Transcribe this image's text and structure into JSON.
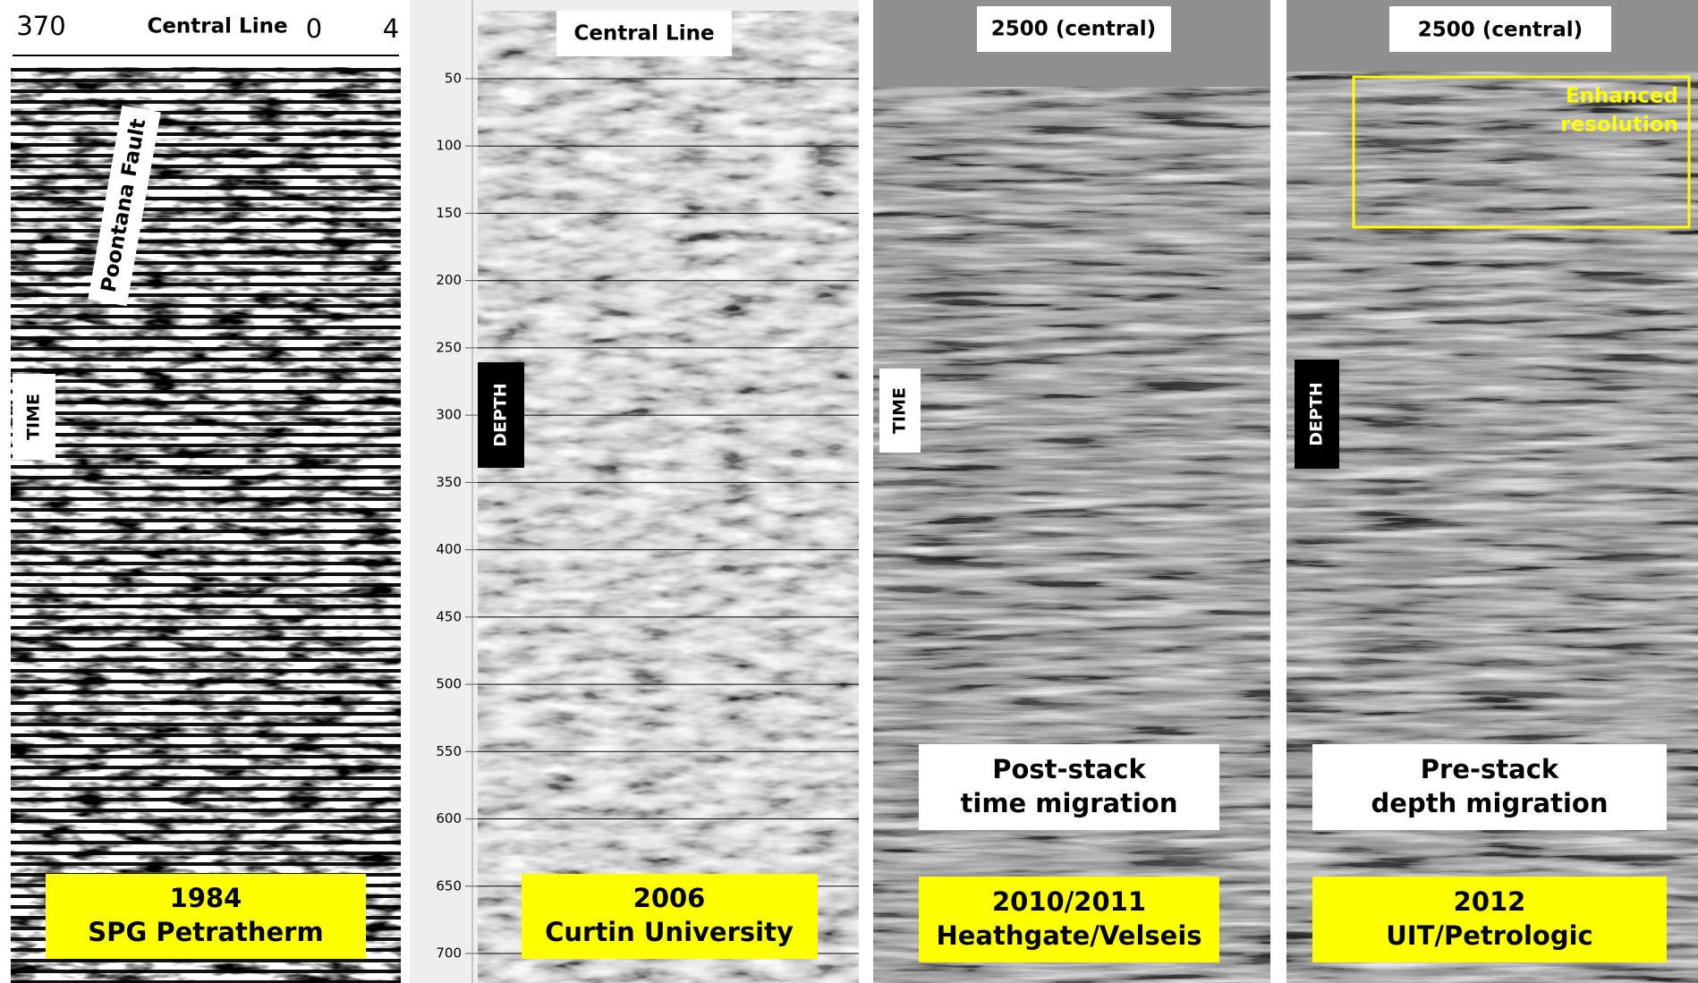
{
  "panels": [
    {
      "ruler": [
        "370",
        "Central Line",
        "0",
        "4"
      ],
      "fault": "Poontana Fault",
      "axis_label": "TIME",
      "year": "1984",
      "source": "SPG Petratherm"
    },
    {
      "header": "Central Line",
      "axis_label": "DEPTH",
      "axis_ticks": [
        50,
        100,
        150,
        200,
        250,
        300,
        350,
        400,
        450,
        500,
        550,
        600,
        650,
        700
      ],
      "year": "2006",
      "source": "Curtin University"
    },
    {
      "header": "2500 (central)",
      "axis_label": "TIME",
      "method": [
        "Post-stack",
        "time migration"
      ],
      "year": "2010/2011",
      "source": "Heathgate/Velseis"
    },
    {
      "header": "2500 (central)",
      "axis_label": "DEPTH",
      "highlight": [
        "Enhanced",
        "resolution"
      ],
      "method": [
        "Pre-stack",
        "depth migration"
      ],
      "year": "2012",
      "source": "UIT/Petrologic"
    }
  ]
}
